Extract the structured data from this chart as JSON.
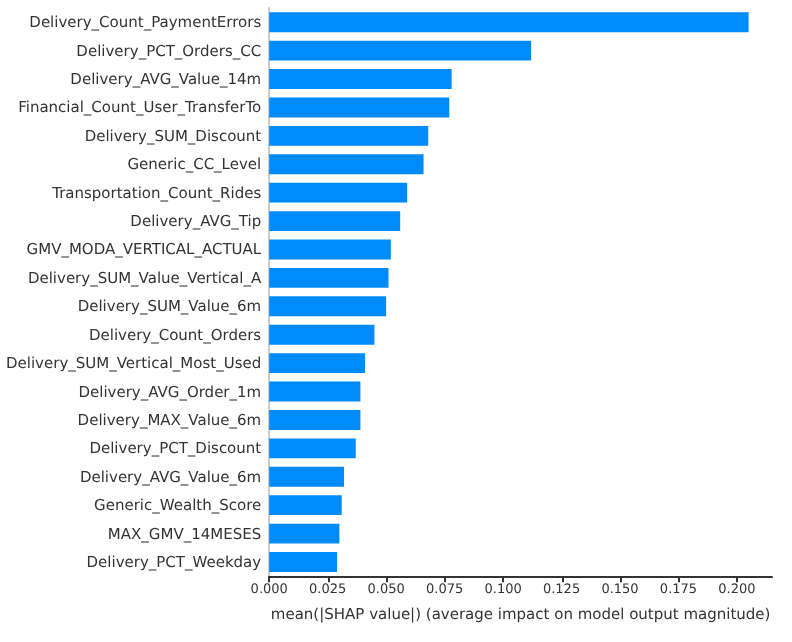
{
  "chart_data": {
    "type": "bar",
    "orientation": "horizontal",
    "xlabel": "mean(|SHAP value|) (average impact on model output magnitude)",
    "categories": [
      "Delivery_Count_PaymentErrors",
      "Delivery_PCT_Orders_CC",
      "Delivery_AVG_Value_14m",
      "Financial_Count_User_TransferTo",
      "Delivery_SUM_Discount",
      "Generic_CC_Level",
      "Transportation_Count_Rides",
      "Delivery_AVG_Tip",
      "GMV_MODA_VERTICAL_ACTUAL",
      "Delivery_SUM_Value_Vertical_A",
      "Delivery_SUM_Value_6m",
      "Delivery_Count_Orders",
      "Delivery_SUM_Vertical_Most_Used",
      "Delivery_AVG_Order_1m",
      "Delivery_MAX_Value_6m",
      "Delivery_PCT_Discount",
      "Delivery_AVG_Value_6m",
      "Generic_Wealth_Score",
      "MAX_GMV_14MESES",
      "Delivery_PCT_Weekday"
    ],
    "values": [
      0.205,
      0.112,
      0.078,
      0.077,
      0.068,
      0.066,
      0.059,
      0.056,
      0.052,
      0.051,
      0.05,
      0.045,
      0.041,
      0.039,
      0.039,
      0.037,
      0.032,
      0.031,
      0.03,
      0.029
    ],
    "color": "#008bfb",
    "xlim": [
      0,
      0.215
    ],
    "xticks": [
      {
        "value": 0,
        "label": "0.000"
      },
      0.025,
      {
        "value": 0.05,
        "label": "0.050"
      },
      0.075,
      {
        "value": 0.1,
        "label": "0.100"
      },
      0.125,
      {
        "value": 0.15,
        "label": "0.150"
      },
      0.175,
      {
        "value": 0.2,
        "label": "0.200"
      }
    ],
    "grid": false
  }
}
